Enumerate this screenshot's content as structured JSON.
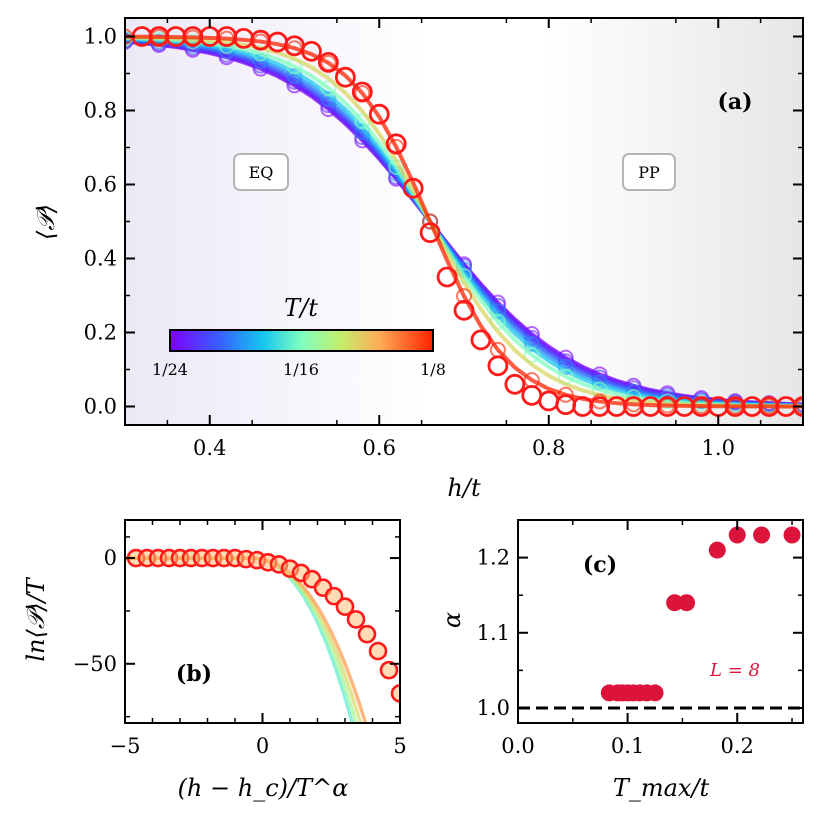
{
  "chart_data": [
    {
      "panel": "a",
      "type": "scatter",
      "panel_label": "(a)",
      "xlabel": "h/t",
      "ylabel": "⟨𝒫⟩",
      "xlim": [
        0.3,
        1.1
      ],
      "ylim": [
        -0.05,
        1.05
      ],
      "xticks": [
        "0.4",
        "0.6",
        "0.8",
        "1.0"
      ],
      "yticks": [
        "0.0",
        "0.2",
        "0.4",
        "0.6",
        "0.8",
        "1.0"
      ],
      "regions": [
        {
          "label": "EQ",
          "x": 0.45,
          "y": 0.63
        },
        {
          "label": "PP",
          "x": 0.93,
          "y": 0.63
        }
      ],
      "colorbar": {
        "title": "T/t",
        "tick_labels": [
          "1/24",
          "1/16",
          "1/8"
        ],
        "range": [
          0.0417,
          0.125
        ]
      },
      "curves_T": [
        0.0417,
        0.0455,
        0.05,
        0.0556,
        0.0625,
        0.0714,
        0.0833,
        0.1,
        0.125
      ],
      "curve_x": [
        0.3,
        0.32,
        0.34,
        0.36,
        0.38,
        0.4,
        0.42,
        0.44,
        0.46,
        0.48,
        0.5,
        0.52,
        0.54,
        0.56,
        0.58,
        0.6,
        0.62,
        0.64,
        0.66,
        0.68,
        0.7,
        0.72,
        0.74,
        0.76,
        0.78,
        0.8,
        0.82,
        0.84,
        0.86,
        0.88,
        0.9,
        0.92,
        0.94,
        0.96,
        0.98,
        1.0,
        1.02,
        1.04,
        1.06,
        1.08,
        1.1
      ],
      "series": [
        {
          "T": 0.125,
          "highlight": true,
          "x": [
            0.32,
            0.34,
            0.36,
            0.38,
            0.4,
            0.42,
            0.44,
            0.46,
            0.48,
            0.5,
            0.52,
            0.54,
            0.56,
            0.58,
            0.6,
            0.62,
            0.64,
            0.66,
            0.68,
            0.7,
            0.72,
            0.74,
            0.76,
            0.78,
            0.8,
            0.82,
            0.84,
            0.86,
            0.88,
            0.9,
            0.92,
            0.94,
            0.96,
            0.98,
            1.0,
            1.02,
            1.04,
            1.06,
            1.08,
            1.1
          ],
          "y": [
            1.0,
            1.0,
            1.0,
            1.0,
            1.0,
            1.0,
            0.995,
            0.99,
            0.985,
            0.975,
            0.96,
            0.93,
            0.89,
            0.85,
            0.79,
            0.71,
            0.59,
            0.47,
            0.35,
            0.26,
            0.18,
            0.11,
            0.06,
            0.03,
            0.015,
            0.005,
            0.0,
            0.0,
            0.0,
            0.0,
            0.0,
            0.0,
            0.0,
            0.0,
            0.0,
            0.0,
            0.0,
            0.0,
            0.0,
            0.0
          ]
        }
      ]
    },
    {
      "panel": "b",
      "type": "scatter",
      "panel_label": "(b)",
      "xlabel": "(h − h_c)/T^α",
      "ylabel": "ln⟨𝒫⟩/T",
      "xlim": [
        -5,
        5
      ],
      "ylim": [
        -78,
        18
      ],
      "xticks": [
        "−5",
        "0",
        "5"
      ],
      "yticks": [
        "0",
        "−50"
      ],
      "series": [
        {
          "T": 0.125,
          "highlight": true,
          "x": [
            -4.6,
            -4.2,
            -3.8,
            -3.4,
            -3.0,
            -2.6,
            -2.2,
            -1.8,
            -1.4,
            -1.0,
            -0.6,
            -0.2,
            0.2,
            0.6,
            1.0,
            1.4,
            1.8,
            2.2,
            2.6,
            3.0,
            3.4,
            3.8,
            4.2,
            4.6,
            5.0
          ],
          "y": [
            0,
            0,
            0,
            0,
            0,
            0,
            0,
            0,
            0,
            0,
            -0.5,
            -1,
            -2,
            -3,
            -5,
            -7,
            -10,
            -14,
            -18,
            -23,
            -29,
            -36,
            -44,
            -53,
            -64
          ]
        }
      ]
    },
    {
      "panel": "c",
      "type": "scatter",
      "panel_label": "(c)",
      "xlabel": "T_max/t",
      "ylabel": "α",
      "annotation": "L = 8",
      "xlim": [
        0.0,
        0.26
      ],
      "ylim": [
        0.98,
        1.25
      ],
      "xticks": [
        "0.0",
        "0.1",
        "0.2"
      ],
      "yticks": [
        "1.0",
        "1.1",
        "1.2"
      ],
      "reference_line": 1.0,
      "series": [
        {
          "x": [
            0.0833,
            0.0909,
            0.0952,
            0.1,
            0.1053,
            0.1111,
            0.1176,
            0.125,
            0.1429,
            0.1538,
            0.1818,
            0.2,
            0.2222,
            0.25
          ],
          "y": [
            1.02,
            1.02,
            1.02,
            1.02,
            1.02,
            1.02,
            1.02,
            1.02,
            1.14,
            1.14,
            1.21,
            1.23,
            1.23,
            1.23
          ]
        }
      ]
    }
  ]
}
